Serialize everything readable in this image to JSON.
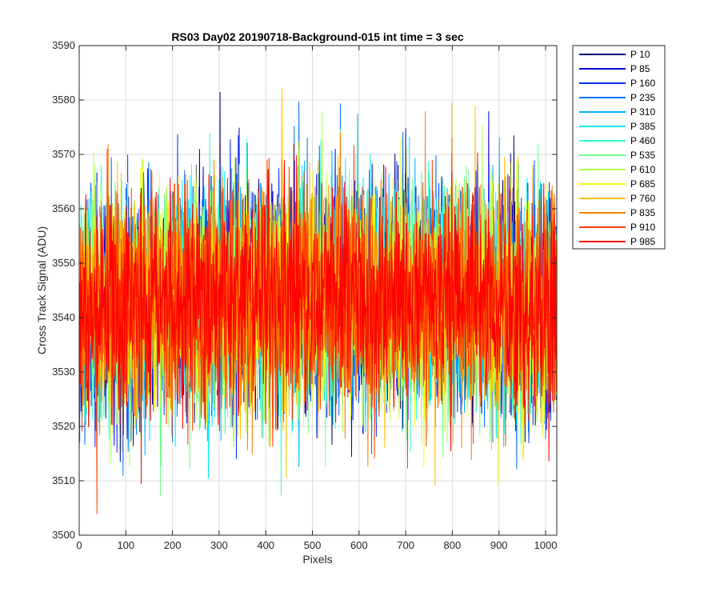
{
  "chart_data": {
    "type": "line",
    "title": "RS03 Day02 20190718-Background-015 int time = 3 sec",
    "xlabel": "Pixels",
    "ylabel": "Cross Track Signal (ADU)",
    "xlim": [
      0,
      1024
    ],
    "ylim": [
      3500,
      3590
    ],
    "xticks": [
      0,
      100,
      200,
      300,
      400,
      500,
      600,
      700,
      800,
      900,
      1000
    ],
    "yticks": [
      3500,
      3510,
      3520,
      3530,
      3540,
      3550,
      3560,
      3570,
      3580,
      3590
    ],
    "grid": true,
    "legend_position": "outside-right",
    "series": [
      {
        "name": "P 10",
        "color": "#00007f",
        "mean": 3541
      },
      {
        "name": "P 85",
        "color": "#0000e0",
        "mean": 3541
      },
      {
        "name": "P 160",
        "color": "#0030ff",
        "mean": 3541
      },
      {
        "name": "P 235",
        "color": "#0070ff",
        "mean": 3541
      },
      {
        "name": "P 310",
        "color": "#00b0ff",
        "mean": 3541
      },
      {
        "name": "P 385",
        "color": "#00e8ff",
        "mean": 3541
      },
      {
        "name": "P 460",
        "color": "#30ffd0",
        "mean": 3541
      },
      {
        "name": "P 535",
        "color": "#70ff90",
        "mean": 3541
      },
      {
        "name": "P 610",
        "color": "#b0ff50",
        "mean": 3541
      },
      {
        "name": "P 685",
        "color": "#f0ff10",
        "mean": 3541
      },
      {
        "name": "P 760",
        "color": "#ffc000",
        "mean": 3541
      },
      {
        "name": "P 835",
        "color": "#ff8000",
        "mean": 3541
      },
      {
        "name": "P 910",
        "color": "#ff4000",
        "mean": 3541
      },
      {
        "name": "P 985",
        "color": "#ff0000",
        "mean": 3541
      }
    ]
  }
}
